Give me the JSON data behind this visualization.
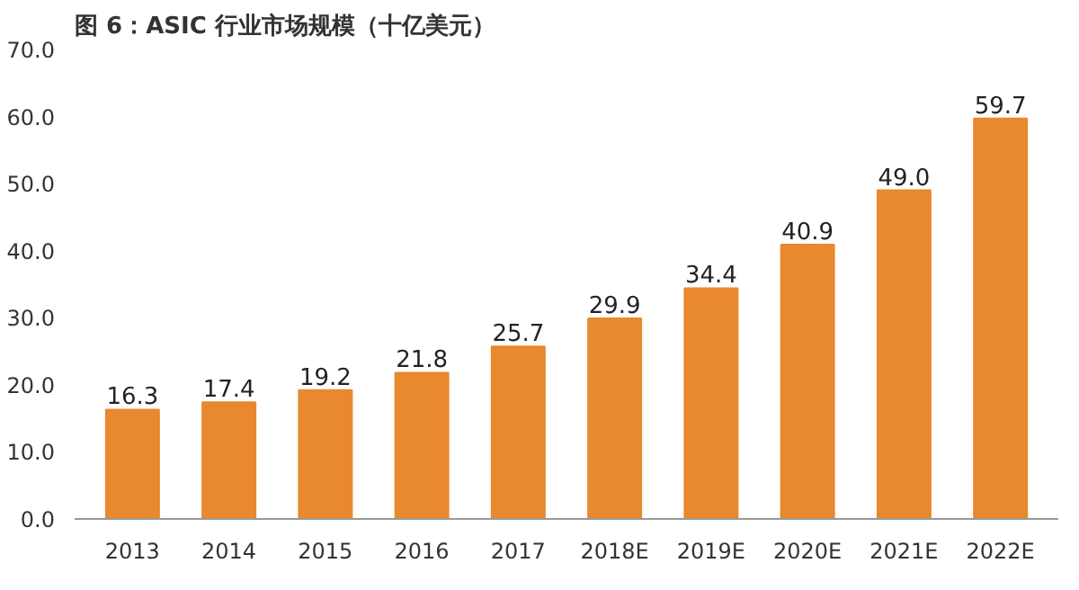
{
  "chart_data": {
    "type": "bar",
    "title": "图 6：ASIC 行业市场规模（十亿美元）",
    "categories": [
      "2013",
      "2014",
      "2015",
      "2016",
      "2017",
      "2018E",
      "2019E",
      "2020E",
      "2021E",
      "2022E"
    ],
    "values": [
      16.3,
      17.4,
      19.2,
      21.8,
      25.7,
      29.9,
      34.4,
      40.9,
      49.0,
      59.7
    ],
    "value_labels": [
      "16.3",
      "17.4",
      "19.2",
      "21.8",
      "25.7",
      "29.9",
      "34.4",
      "40.9",
      "49.0",
      "59.7"
    ],
    "color": "#e8892f",
    "ylim": [
      0,
      70
    ],
    "yticks": [
      {
        "value": 0,
        "label": "0.0"
      },
      {
        "value": 10,
        "label": "10.0"
      },
      {
        "value": 20,
        "label": "20.0"
      },
      {
        "value": 30,
        "label": "30.0"
      },
      {
        "value": 40,
        "label": "40.0"
      },
      {
        "value": 50,
        "label": "50.0"
      },
      {
        "value": 60,
        "label": "60.0"
      },
      {
        "value": 70,
        "label": "70.0"
      }
    ],
    "grid": false
  }
}
